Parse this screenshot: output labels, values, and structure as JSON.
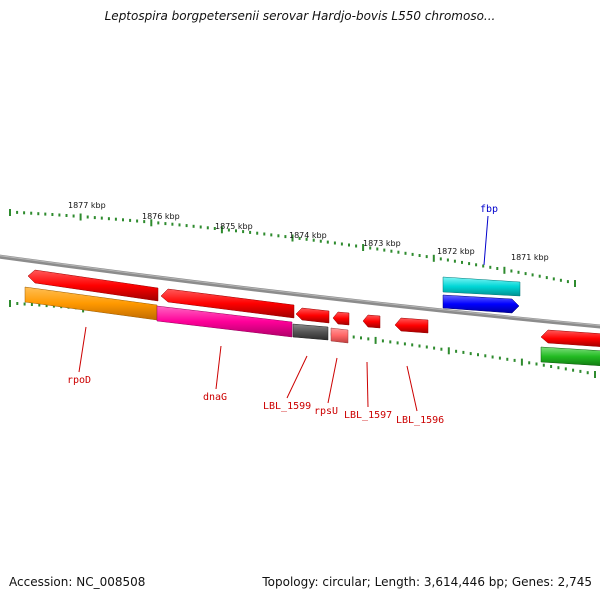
{
  "title": "Leptospira borgpetersenii serovar Hardjo-bovis L550 chromoso...",
  "footer": {
    "accession": "Accession: NC_008508",
    "summary": "Topology: circular; Length: 3,614,446 bp; Genes: 2,745"
  },
  "colors": {
    "backbone": "#7f7f7f",
    "ruler_ticks": "#2e8b2e",
    "label_red": "#cc0000",
    "label_blue": "#0000cc"
  },
  "scale_labels": [
    "1877 kbp",
    "1876 kbp",
    "1875 kbp",
    "1874 kbp",
    "1873 kbp",
    "1872 kbp",
    "1871 kbp"
  ],
  "genes": [
    {
      "name": "rpoD",
      "label": "rpoD",
      "label_color": "red",
      "colors": [
        "#ff0000"
      ]
    },
    {
      "name": "dnaG",
      "label": "dnaG",
      "label_color": "red",
      "colors": [
        "#ff0000"
      ]
    },
    {
      "name": "LBL_1599",
      "label": "LBL_1599",
      "label_color": "red",
      "colors": [
        "#ff0000"
      ]
    },
    {
      "name": "rpsU",
      "label": "rpsU",
      "label_color": "red",
      "colors": [
        "#ff0000"
      ]
    },
    {
      "name": "LBL_1597",
      "label": "LBL_1597",
      "label_color": "red",
      "colors": [
        "#ff0000"
      ]
    },
    {
      "name": "LBL_1596",
      "label": "LBL_1596",
      "label_color": "red",
      "colors": [
        "#ff0000"
      ]
    },
    {
      "name": "fbp",
      "label": "fbp",
      "label_color": "blue",
      "colors": [
        "#00d6d6",
        "#0000ff"
      ]
    }
  ],
  "feature_tracks": [
    {
      "name": "orange-block",
      "color": "#ff9900"
    },
    {
      "name": "magenta-block",
      "color": "#ff0099"
    },
    {
      "name": "gray-block",
      "color": "#555555"
    },
    {
      "name": "pink-block",
      "color": "#ff6666"
    },
    {
      "name": "green-block",
      "color": "#22bb22"
    }
  ]
}
